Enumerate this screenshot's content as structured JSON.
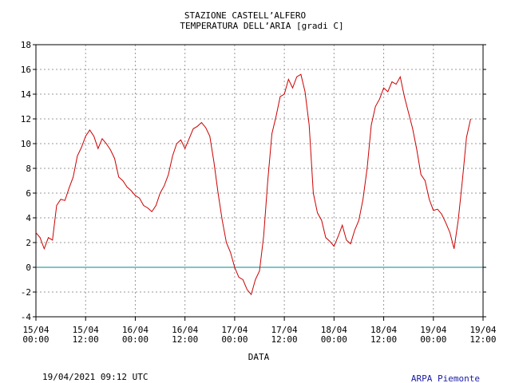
{
  "chart_data": {
    "type": "line",
    "title": "STAZIONE CASTELL’ALFERO",
    "subtitle": "TEMPERATURA DELL’ARIA [gradi C]",
    "x_label": "DATA",
    "footer_left": "19/04/2021 09:12 UTC",
    "footer_right": "ARPA Piemonte",
    "xlim": [
      0,
      108
    ],
    "xticks": [
      {
        "value": 0,
        "label": "15/04 00:00"
      },
      {
        "value": 12,
        "label": "15/04 12:00"
      },
      {
        "value": 24,
        "label": "16/04 00:00"
      },
      {
        "value": 36,
        "label": "16/04 12:00"
      },
      {
        "value": 48,
        "label": "17/04 00:00"
      },
      {
        "value": 60,
        "label": "17/04 12:00"
      },
      {
        "value": 72,
        "label": "18/04 00:00"
      },
      {
        "value": 84,
        "label": "18/04 12:00"
      },
      {
        "value": 96,
        "label": "19/04 00:00"
      },
      {
        "value": 108,
        "label": "19/04 12:00"
      }
    ],
    "ylim": [
      -4,
      18
    ],
    "yticks": [
      -4,
      -2,
      0,
      2,
      4,
      6,
      8,
      10,
      12,
      14,
      16,
      18
    ],
    "grid": true,
    "zero_line_color": "#008b8b",
    "x": [
      0,
      1,
      2,
      3,
      4,
      5,
      6,
      7,
      8,
      9,
      10,
      11,
      12,
      13,
      14,
      15,
      16,
      17,
      18,
      19,
      20,
      21,
      22,
      23,
      24,
      25,
      26,
      27,
      28,
      29,
      30,
      31,
      32,
      33,
      34,
      35,
      36,
      37,
      38,
      39,
      40,
      41,
      42,
      43,
      44,
      45,
      46,
      47,
      48,
      49,
      50,
      51,
      52,
      53,
      54,
      55,
      56,
      57,
      58,
      59,
      60,
      61,
      62,
      63,
      64,
      65,
      66,
      67,
      68,
      69,
      70,
      71,
      72,
      73,
      74,
      75,
      76,
      77,
      78,
      79,
      80,
      81,
      82,
      83,
      84,
      85,
      86,
      87,
      88,
      89,
      90,
      91,
      92,
      93,
      94,
      95,
      96,
      97,
      98,
      99,
      100,
      101,
      102,
      103,
      104,
      105
    ],
    "series": [
      {
        "color": "#cc0000",
        "values": [
          2.8,
          2.4,
          1.5,
          2.4,
          2.2,
          5.0,
          5.5,
          5.4,
          6.4,
          7.3,
          9.0,
          9.7,
          10.6,
          11.1,
          10.6,
          9.6,
          10.4,
          10.0,
          9.5,
          8.8,
          7.3,
          7.0,
          6.5,
          6.2,
          5.8,
          5.6,
          5.0,
          4.8,
          4.5,
          5.0,
          6.0,
          6.6,
          7.5,
          9.0,
          10.0,
          10.3,
          9.6,
          10.4,
          11.2,
          11.4,
          11.7,
          11.3,
          10.6,
          8.5,
          6.0,
          3.8,
          2.0,
          1.2,
          0.0,
          -0.8,
          -1.0,
          -1.8,
          -2.2,
          -1.0,
          -0.3,
          2.5,
          7.0,
          10.8,
          12.2,
          13.8,
          14.0,
          15.2,
          14.5,
          15.4,
          15.6,
          14.2,
          11.5,
          6.0,
          4.4,
          3.8,
          2.4,
          2.1,
          1.7,
          2.5,
          3.4,
          2.2,
          1.9,
          3.0,
          3.8,
          5.5,
          8.0,
          11.5,
          13.0,
          13.6,
          14.5,
          14.2,
          15.0,
          14.8,
          15.4,
          13.8,
          12.5,
          11.2,
          9.5,
          7.5,
          7.0,
          5.5,
          4.6,
          4.7,
          4.3,
          3.6,
          2.8,
          1.5,
          3.8,
          7.0,
          10.5,
          12.0
        ]
      }
    ]
  }
}
